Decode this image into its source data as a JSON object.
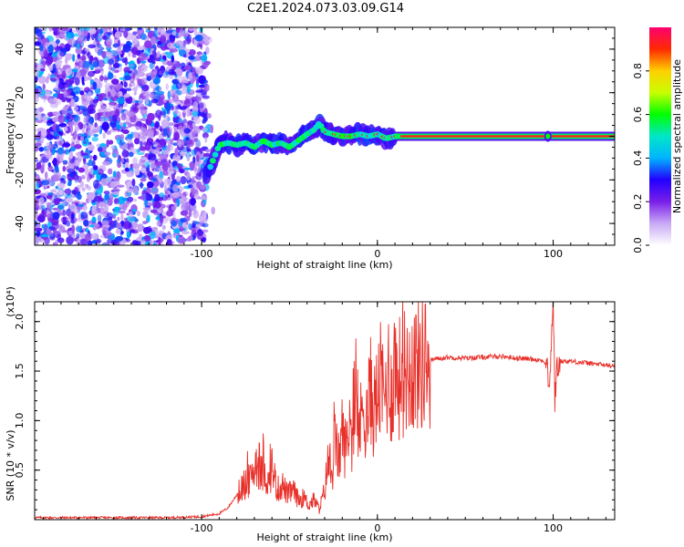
{
  "figure": {
    "title": "C2E1.2024.073.03.09.G14"
  },
  "chart_data": [
    {
      "type": "heatmap",
      "xlabel": "Height of straight line (km)",
      "ylabel": "Frequency (Hz)",
      "xlim": [
        -195,
        135
      ],
      "ylim": [
        -50,
        50
      ],
      "x_ticks": [
        -100,
        0,
        100
      ],
      "x_tick_labels": [
        "-100",
        "0",
        "100"
      ],
      "y_ticks": [
        -40,
        -20,
        0,
        20,
        40
      ],
      "y_tick_labels": [
        "-40",
        "-20",
        "0",
        "20",
        "40"
      ],
      "grid": false,
      "noise_region_x": [
        -195,
        -97
      ],
      "trace": {
        "x": [
          -97,
          -93,
          -90,
          -85,
          -80,
          -75,
          -70,
          -65,
          -60,
          -55,
          -50,
          -45,
          -40,
          -36,
          -33,
          -30,
          -25,
          -20,
          -15,
          -10,
          -5,
          0,
          5,
          10,
          20,
          40,
          60,
          80,
          95,
          97,
          100,
          120,
          135
        ],
        "y": [
          -18,
          -10,
          -4,
          -3,
          -4,
          -3,
          -5,
          -2,
          -4,
          -3,
          -5,
          -2,
          1,
          3,
          6,
          2,
          1,
          0,
          0,
          1,
          0,
          1,
          -1,
          0,
          0,
          0,
          0,
          0,
          0,
          1,
          0,
          0,
          0
        ]
      },
      "colorbar": {
        "label": "Normalized spectral amplitude",
        "range": [
          0,
          1
        ],
        "ticks": [
          0.0,
          0.2,
          0.4,
          0.6,
          0.8
        ],
        "tick_labels": [
          "0.0",
          "0.2",
          "0.4",
          "0.6",
          "0.8"
        ],
        "colors": [
          "#ffffff",
          "#c9a9f5",
          "#7a1fe8",
          "#2200ff",
          "#00b4ff",
          "#00e6c8",
          "#00ff00",
          "#c8ff00",
          "#ffd000",
          "#ff2a00",
          "#ff0070"
        ]
      }
    },
    {
      "type": "line",
      "xlabel": "Height of straight line (km)",
      "ylabel": "SNR (10 * v/v)",
      "multiplier_label": "(x10⁴)",
      "xlim": [
        -195,
        135
      ],
      "ylim": [
        0,
        2.2
      ],
      "x_ticks": [
        -100,
        0,
        100
      ],
      "x_tick_labels": [
        "-100",
        "0",
        "100"
      ],
      "y_ticks": [
        0.5,
        1.0,
        1.5,
        2.0
      ],
      "y_tick_labels": [
        "0.5",
        "1.0",
        "1.5",
        "2.0"
      ],
      "grid": false,
      "line_color": "#e8302a",
      "series": [
        {
          "x": [
            -195,
            -150,
            -120,
            -100,
            -90,
            -85,
            -80,
            -76,
            -72,
            -69,
            -66,
            -64,
            -62,
            -60,
            -57,
            -54,
            -51,
            -48,
            -45,
            -42,
            -39,
            -36,
            -33,
            -30,
            -28,
            -26,
            -24,
            -22,
            -20,
            -18,
            -16,
            -14,
            -12,
            -10,
            -8,
            -6,
            -4,
            -2,
            0,
            2,
            4,
            6,
            8,
            10,
            12,
            14,
            16,
            18,
            20,
            24,
            28,
            32,
            36,
            40,
            50,
            60,
            70,
            80,
            90,
            95,
            98,
            99,
            100,
            101,
            102,
            104,
            110,
            120,
            130,
            135
          ],
          "y": [
            0.02,
            0.02,
            0.02,
            0.03,
            0.06,
            0.12,
            0.25,
            0.35,
            0.4,
            0.6,
            0.45,
            0.5,
            0.35,
            0.55,
            0.3,
            0.35,
            0.25,
            0.3,
            0.2,
            0.22,
            0.15,
            0.2,
            0.1,
            0.3,
            0.6,
            0.4,
            0.8,
            0.6,
            0.9,
            0.7,
            1.0,
            0.8,
            1.1,
            0.9,
            1.2,
            1.0,
            1.3,
            1.1,
            1.25,
            1.4,
            1.2,
            1.5,
            1.3,
            1.6,
            1.4,
            1.5,
            1.5,
            1.55,
            1.55,
            1.58,
            1.6,
            1.62,
            1.63,
            1.64,
            1.63,
            1.64,
            1.65,
            1.63,
            1.62,
            1.6,
            1.4,
            1.8,
            2.2,
            1.2,
            1.5,
            1.6,
            1.6,
            1.58,
            1.56,
            1.55
          ]
        }
      ]
    }
  ]
}
